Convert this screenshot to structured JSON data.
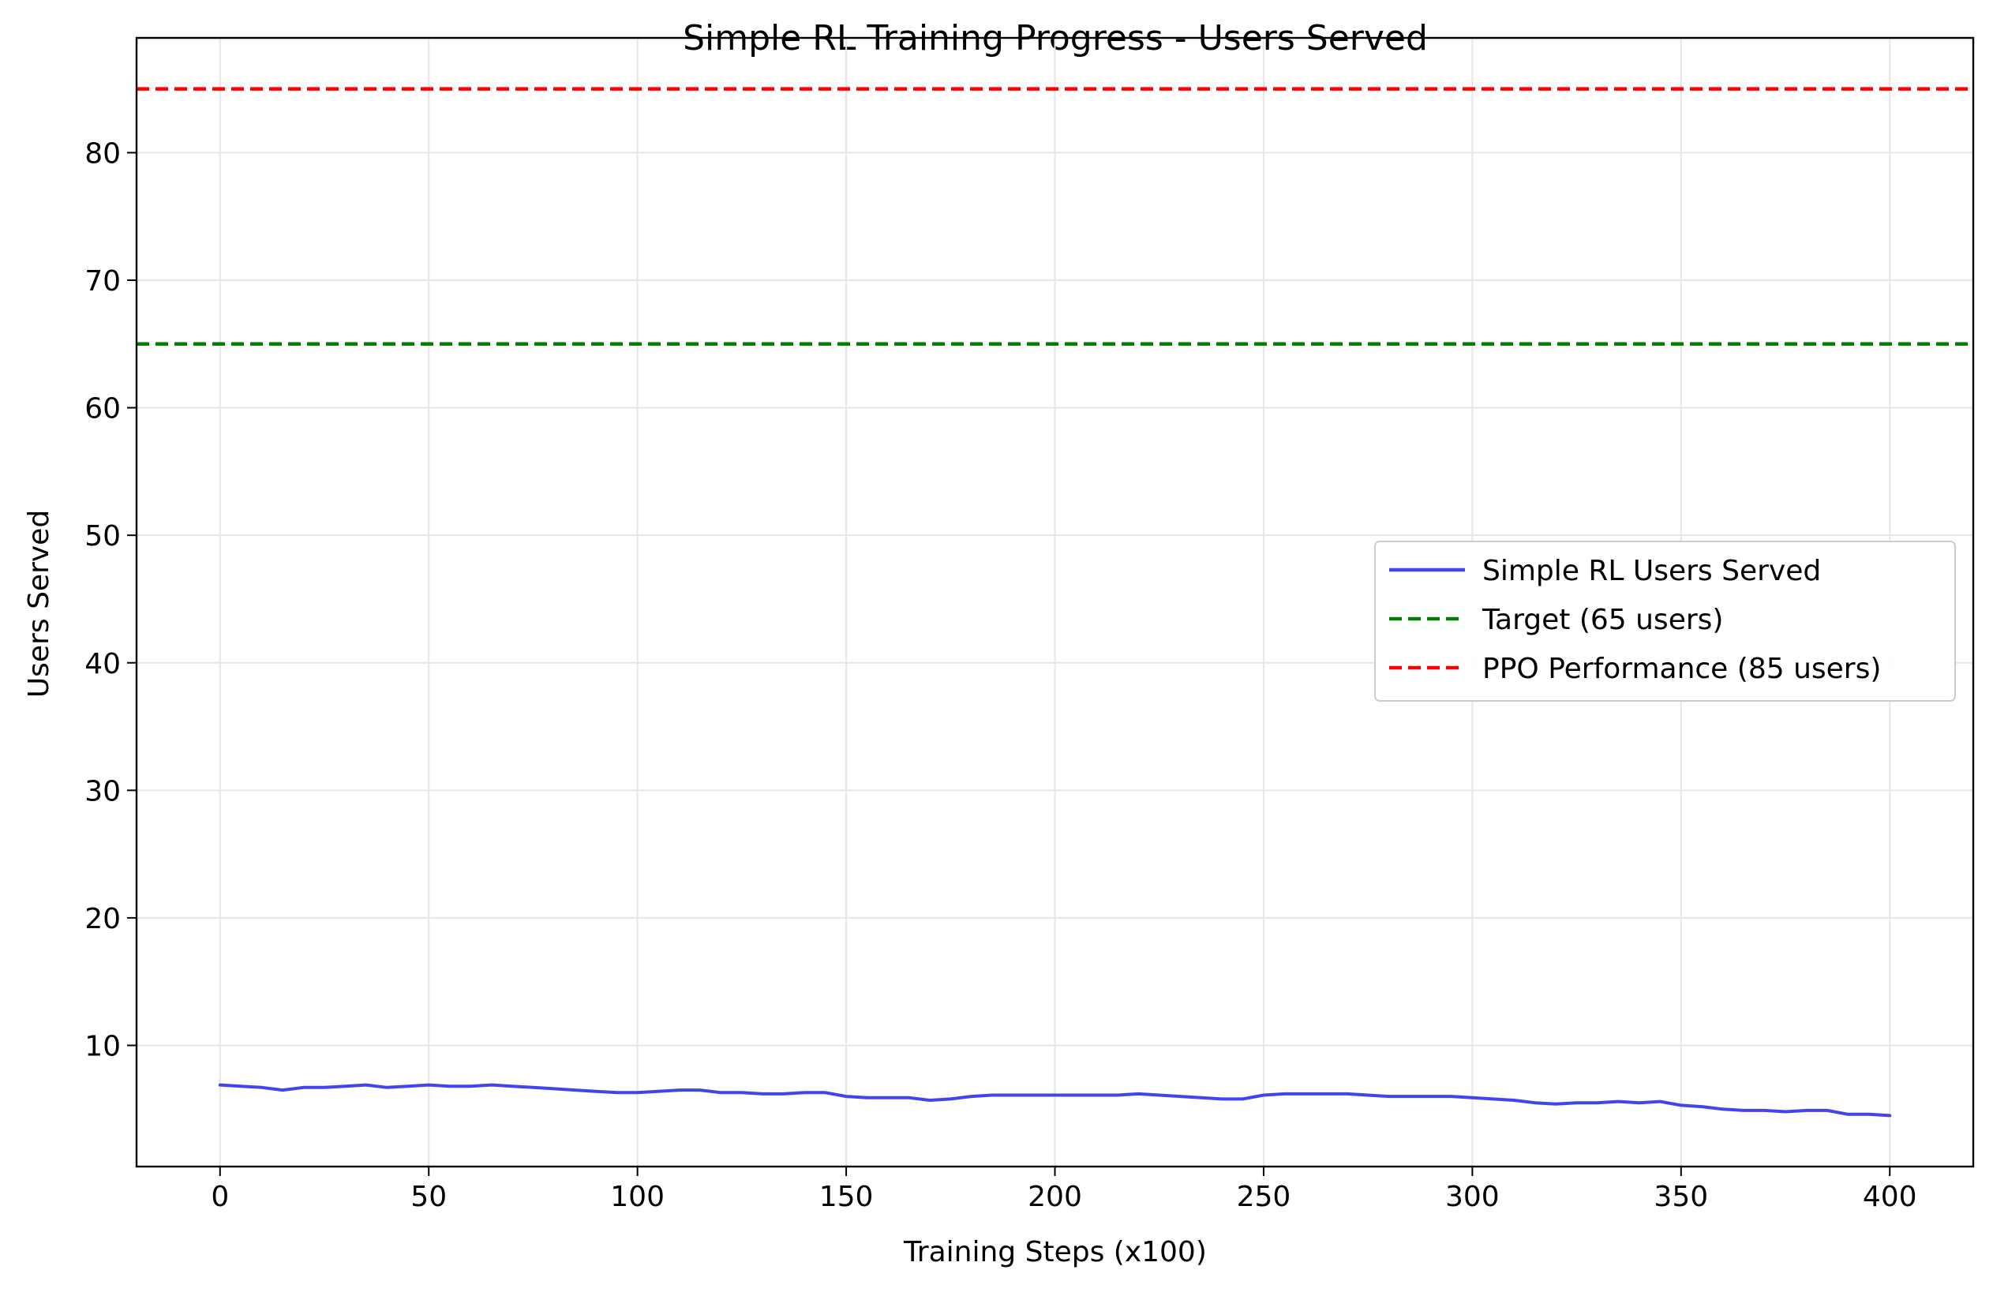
{
  "chart_data": {
    "type": "line",
    "title": "Simple RL Training Progress - Users Served",
    "xlabel": "Training Steps (x100)",
    "ylabel": "Users Served",
    "xlim": [
      -20,
      420
    ],
    "ylim": [
      0.5,
      89
    ],
    "xticks": [
      0,
      50,
      100,
      150,
      200,
      250,
      300,
      350,
      400
    ],
    "yticks": [
      10,
      20,
      30,
      40,
      50,
      60,
      70,
      80
    ],
    "grid": true,
    "legend_position": "center-right",
    "series": [
      {
        "name": "Simple RL Users Served",
        "color": "#4444ee",
        "style": "solid",
        "x": [
          0,
          5,
          10,
          15,
          20,
          25,
          30,
          35,
          40,
          45,
          50,
          55,
          60,
          65,
          70,
          75,
          80,
          85,
          90,
          95,
          100,
          105,
          110,
          115,
          120,
          125,
          130,
          135,
          140,
          145,
          150,
          155,
          160,
          165,
          170,
          175,
          180,
          185,
          190,
          195,
          200,
          205,
          210,
          215,
          220,
          225,
          230,
          235,
          240,
          245,
          250,
          255,
          260,
          265,
          270,
          275,
          280,
          285,
          290,
          295,
          300,
          305,
          310,
          315,
          320,
          325,
          330,
          335,
          340,
          345,
          350,
          355,
          360,
          365,
          370,
          375,
          380,
          385,
          390,
          395,
          400
        ],
        "values": [
          6.9,
          6.8,
          6.7,
          6.5,
          6.7,
          6.7,
          6.8,
          6.9,
          6.7,
          6.8,
          6.9,
          6.8,
          6.8,
          6.9,
          6.8,
          6.7,
          6.6,
          6.5,
          6.4,
          6.3,
          6.3,
          6.4,
          6.5,
          6.5,
          6.3,
          6.3,
          6.2,
          6.2,
          6.3,
          6.3,
          6.0,
          5.9,
          5.9,
          5.9,
          5.7,
          5.8,
          6.0,
          6.1,
          6.1,
          6.1,
          6.1,
          6.1,
          6.1,
          6.1,
          6.2,
          6.1,
          6.0,
          5.9,
          5.8,
          5.8,
          6.1,
          6.2,
          6.2,
          6.2,
          6.2,
          6.1,
          6.0,
          6.0,
          6.0,
          6.0,
          5.9,
          5.8,
          5.7,
          5.5,
          5.4,
          5.5,
          5.5,
          5.6,
          5.5,
          5.6,
          5.3,
          5.2,
          5.0,
          4.9,
          4.9,
          4.8,
          4.9,
          4.9,
          4.6,
          4.6,
          4.5
        ]
      },
      {
        "name": "Target (65 users)",
        "color": "#008000",
        "style": "dashed",
        "hline": 65
      },
      {
        "name": "PPO Performance (85 users)",
        "color": "#ff0000",
        "style": "dashed",
        "hline": 85
      }
    ]
  }
}
